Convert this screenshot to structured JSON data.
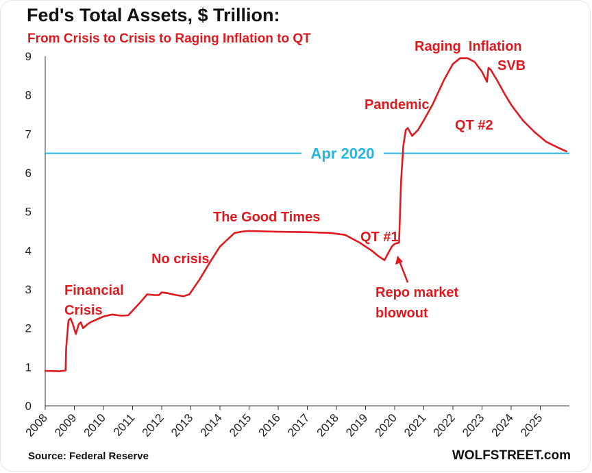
{
  "header": {
    "title": "Fed's Total Assets, $ Trillion:",
    "subtitle": "From Crisis to Crisis to Raging Inflation to QT"
  },
  "footer": {
    "source": "Source: Federal Reserve",
    "brand": "WOLFSTREET.com"
  },
  "colors": {
    "line": "#e0191e",
    "reference": "#26b4e0",
    "text": "#111111"
  },
  "chart_data": {
    "type": "line",
    "title": "Fed's Total Assets, $ Trillion:",
    "subtitle": "From Crisis to Crisis to Raging Inflation to QT",
    "ylim": [
      0,
      9
    ],
    "yticks": [
      "0",
      "1",
      "2",
      "3",
      "4",
      "5",
      "6",
      "7",
      "8",
      "9"
    ],
    "xlim": [
      2008,
      2026
    ],
    "xticks": [
      "2008",
      "2009",
      "2010",
      "2011",
      "2012",
      "2013",
      "2014",
      "2015",
      "2016",
      "2017",
      "2018",
      "2019",
      "2020",
      "2021",
      "2022",
      "2023",
      "2024",
      "2025"
    ],
    "grid": false,
    "series": [
      {
        "x": [
          2008.0,
          2008.5,
          2008.7,
          2008.72,
          2008.8,
          2008.87,
          2008.95,
          2009.05,
          2009.15,
          2009.22,
          2009.3,
          2009.38,
          2009.45,
          2009.55,
          2009.7,
          2009.85,
          2010.0,
          2010.3,
          2010.6,
          2010.85,
          2011.0,
          2011.25,
          2011.5,
          2011.75,
          2011.9,
          2012.0,
          2012.2,
          2012.5,
          2012.75,
          2012.95,
          2013.3,
          2013.7,
          2014.0,
          2014.5,
          2014.8,
          2015.0,
          2016.0,
          2017.0,
          2017.8,
          2018.3,
          2018.8,
          2019.2,
          2019.45,
          2019.65,
          2019.9,
          2020.0,
          2020.15,
          2020.22,
          2020.3,
          2020.38,
          2020.45,
          2020.6,
          2020.8,
          2021.0,
          2021.3,
          2021.7,
          2022.0,
          2022.25,
          2022.5,
          2022.75,
          2023.0,
          2023.17,
          2023.22,
          2023.3,
          2023.5,
          2023.8,
          2024.0,
          2024.4,
          2024.8,
          2025.2,
          2025.6,
          2025.9
        ],
        "values": [
          0.9,
          0.89,
          0.91,
          1.5,
          2.2,
          2.25,
          2.1,
          1.85,
          2.1,
          2.15,
          2.0,
          2.05,
          2.1,
          2.15,
          2.2,
          2.25,
          2.3,
          2.35,
          2.32,
          2.33,
          2.45,
          2.65,
          2.87,
          2.85,
          2.85,
          2.92,
          2.9,
          2.85,
          2.82,
          2.87,
          3.25,
          3.75,
          4.1,
          4.45,
          4.49,
          4.5,
          4.48,
          4.47,
          4.45,
          4.4,
          4.2,
          4.0,
          3.85,
          3.75,
          4.1,
          4.17,
          4.2,
          5.8,
          6.7,
          7.1,
          7.15,
          6.95,
          7.1,
          7.35,
          7.75,
          8.4,
          8.8,
          8.95,
          8.95,
          8.85,
          8.6,
          8.34,
          8.7,
          8.65,
          8.4,
          8.0,
          7.75,
          7.35,
          7.05,
          6.8,
          6.65,
          6.55
        ]
      }
    ],
    "reference_line": {
      "y": 6.5,
      "label": "Apr 2020"
    },
    "annotations": {
      "financial_crisis_1": "Financial",
      "financial_crisis_2": "Crisis",
      "no_crisis": "No crisis",
      "good_times": "The Good Times",
      "qt1": "QT #1",
      "repo_1": "Repo market",
      "repo_2": "blowout",
      "pandemic": "Pandemic",
      "raging_inflation": "Raging  Inflation",
      "svb": "SVB",
      "qt2": "QT #2"
    }
  }
}
